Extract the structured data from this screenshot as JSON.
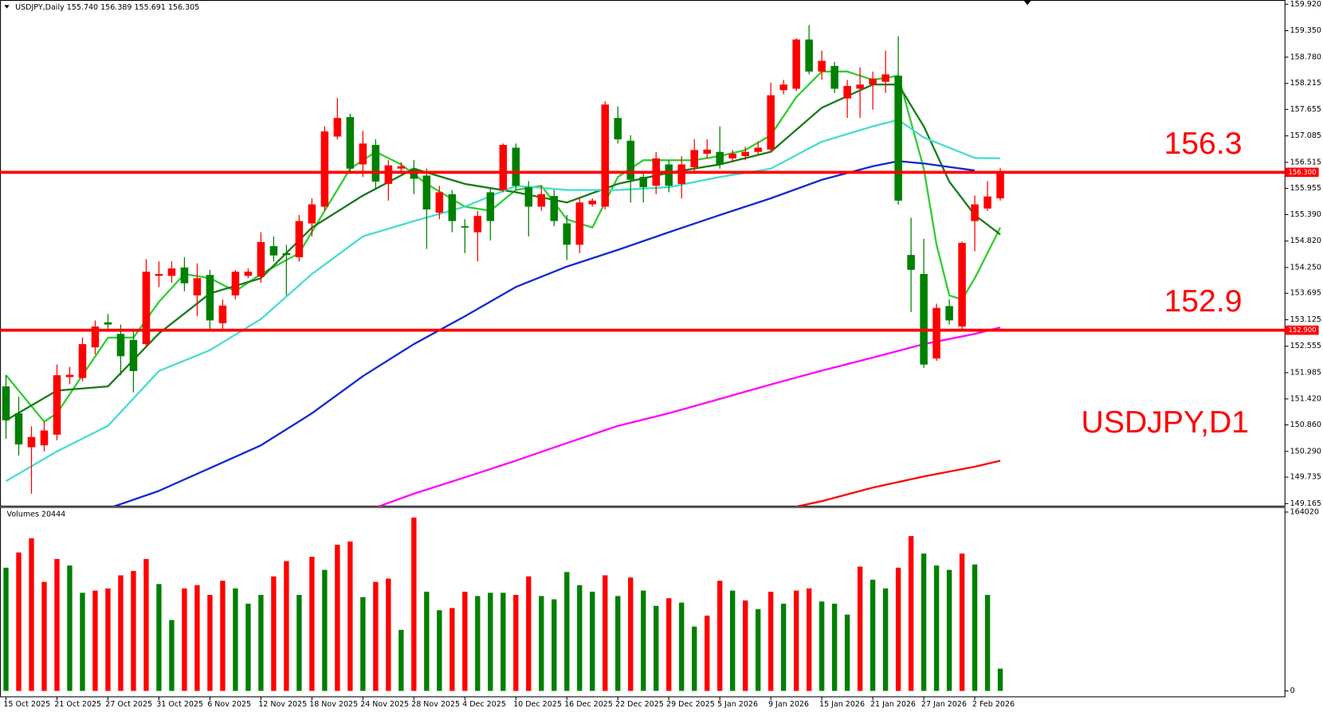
{
  "chart_data": [
    {
      "type": "candlestick",
      "title": "USDJPY,Daily 155.740 156.389 155.691 156.305",
      "annotation": "USDJPY,D1",
      "categories": [
        "15 Oct 2025",
        null,
        null,
        null,
        "21 Oct 2025",
        null,
        null,
        null,
        "27 Oct 2025",
        null,
        null,
        null,
        "31 Oct 2025",
        null,
        null,
        null,
        "6 Nov 2025",
        null,
        null,
        null,
        "12 Nov 2025",
        null,
        null,
        null,
        "18 Nov 2025",
        null,
        null,
        null,
        "24 Nov 2025",
        null,
        null,
        null,
        "28 Nov 2025",
        null,
        null,
        null,
        "4 Dec 2025",
        null,
        null,
        null,
        "10 Dec 2025",
        null,
        null,
        null,
        "16 Dec 2025",
        null,
        null,
        null,
        "22 Dec 2025",
        null,
        null,
        null,
        "29 Dec 2025",
        null,
        null,
        null,
        "5 Jan 2026",
        null,
        null,
        null,
        "9 Jan 2026",
        null,
        null,
        null,
        "15 Jan 2026",
        null,
        null,
        null,
        "21 Jan 2026",
        null,
        null,
        null,
        "27 Jan 2026",
        null,
        null,
        null,
        "2 Feb 2026",
        null,
        null
      ],
      "open": [
        151.69,
        151.11,
        150.38,
        150.42,
        150.65,
        151.89,
        151.87,
        152.53,
        153.07,
        152.82,
        152.69,
        152.6,
        154.07,
        154.07,
        154.25,
        153.65,
        154.09,
        153.05,
        153.65,
        154.07,
        154.05,
        154.71,
        154.56,
        154.47,
        155.2,
        155.56,
        157.07,
        157.49,
        156.47,
        156.89,
        156.05,
        156.38,
        156.38,
        156.23,
        155.43,
        155.83,
        155.14,
        155.01,
        155.87,
        155.92,
        156.83,
        155.98,
        155.56,
        155.79,
        155.2,
        154.74,
        155.61,
        155.56,
        157.47,
        156.98,
        156.2,
        156.01,
        156.47,
        156.05,
        156.41,
        156.7,
        156.74,
        156.6,
        156.65,
        156.74,
        156.79,
        158.07,
        158.1,
        159.16,
        158.47,
        158.59,
        157.89,
        158.1,
        158.19,
        158.25,
        158.38,
        154.52,
        154.11,
        152.29,
        153.42,
        152.98,
        155.25,
        155.52,
        155.74
      ],
      "high": [
        151.93,
        151.47,
        150.83,
        150.93,
        152.16,
        152.11,
        152.74,
        153.11,
        153.25,
        153.02,
        152.93,
        154.43,
        154.38,
        154.38,
        154.47,
        154.34,
        154.2,
        153.56,
        154.2,
        154.23,
        155.01,
        154.92,
        154.74,
        155.38,
        155.74,
        157.29,
        157.9,
        157.56,
        157.19,
        157.01,
        156.56,
        156.52,
        156.56,
        156.38,
        156.01,
        155.92,
        155.29,
        155.47,
        155.98,
        156.92,
        156.92,
        156.11,
        156.01,
        155.92,
        155.38,
        155.74,
        155.74,
        157.83,
        157.72,
        157.1,
        156.29,
        156.74,
        156.56,
        156.65,
        157.01,
        157.01,
        157.29,
        156.78,
        156.85,
        156.96,
        158.23,
        158.29,
        159.19,
        159.47,
        158.92,
        158.68,
        158.29,
        158.56,
        158.47,
        158.92,
        159.23,
        155.32,
        154.87,
        153.47,
        153.56,
        154.81,
        155.8,
        156.11,
        156.389
      ],
      "low": [
        150.56,
        150.2,
        149.38,
        150.29,
        150.53,
        151.74,
        151.8,
        152.38,
        152.92,
        151.93,
        151.56,
        152.53,
        153.83,
        153.92,
        153.74,
        153.2,
        152.92,
        152.92,
        153.56,
        154.02,
        153.92,
        154.38,
        153.65,
        154.38,
        154.92,
        155.47,
        157.01,
        156.29,
        156.2,
        155.92,
        155.69,
        156.29,
        155.83,
        154.65,
        155.29,
        155.01,
        154.56,
        154.38,
        154.83,
        155.87,
        155.92,
        154.92,
        155.47,
        155.14,
        154.41,
        154.56,
        155.56,
        155.5,
        156.92,
        155.65,
        155.65,
        155.83,
        155.87,
        155.74,
        156.29,
        156.6,
        156.38,
        156.52,
        156.56,
        156.69,
        156.74,
        157.98,
        158.05,
        158.41,
        158.29,
        158.01,
        157.47,
        157.47,
        157.65,
        158.01,
        155.6,
        153.29,
        152.09,
        152.24,
        153.02,
        152.89,
        154.6,
        155.47,
        155.691
      ],
      "close": [
        150.96,
        150.44,
        150.6,
        150.74,
        151.93,
        151.94,
        152.6,
        152.98,
        153.02,
        152.34,
        152.02,
        154.16,
        154.11,
        154.23,
        153.91,
        154.02,
        153.11,
        153.43,
        154.16,
        154.16,
        154.8,
        154.51,
        154.52,
        155.25,
        155.61,
        157.18,
        157.47,
        156.38,
        156.92,
        156.1,
        156.45,
        156.43,
        156.16,
        155.5,
        155.87,
        155.25,
        155.11,
        155.36,
        155.25,
        156.89,
        156.01,
        155.56,
        155.83,
        155.25,
        154.74,
        155.65,
        155.69,
        157.76,
        157.01,
        156.14,
        155.98,
        156.6,
        156.01,
        156.47,
        156.78,
        156.79,
        156.47,
        156.7,
        156.74,
        156.83,
        157.96,
        158.19,
        159.16,
        158.47,
        158.7,
        158.1,
        158.16,
        158.19,
        158.32,
        158.41,
        155.69,
        154.2,
        152.16,
        153.38,
        153.11,
        154.78,
        155.61,
        155.78,
        156.305
      ],
      "up_color": "#ff0000",
      "down_color": "#008000",
      "series": [
        {
          "color": "#32cd32",
          "x": [
            0,
            3,
            4,
            6,
            8,
            10,
            12,
            14,
            16,
            18,
            20,
            23,
            25,
            27,
            29,
            31,
            33,
            36,
            38,
            40,
            42,
            44,
            46,
            48,
            50,
            52,
            54,
            56,
            58,
            60,
            62,
            64,
            66,
            68,
            70,
            72,
            73,
            74,
            75,
            76,
            77,
            78
          ],
          "values": [
            151.93,
            150.93,
            151.11,
            151.93,
            152.74,
            152.74,
            153.51,
            154.11,
            154.02,
            153.74,
            154.11,
            154.56,
            155.47,
            156.38,
            156.74,
            156.47,
            156.05,
            155.56,
            155.47,
            155.92,
            156.01,
            155.29,
            155.11,
            156.2,
            156.56,
            156.56,
            156.56,
            156.65,
            156.78,
            157.1,
            157.92,
            158.47,
            158.47,
            158.29,
            158.38,
            156.38,
            154.74,
            153.65,
            153.56,
            154.02,
            154.56,
            155.11
          ]
        },
        {
          "color": "#1b7a1b",
          "x": [
            0,
            4,
            8,
            12,
            16,
            20,
            24,
            28,
            32,
            36,
            40,
            44,
            48,
            52,
            56,
            60,
            64,
            68,
            70,
            72,
            74,
            76,
            78
          ],
          "values": [
            150.96,
            151.6,
            151.69,
            152.83,
            153.69,
            154.02,
            155.11,
            155.8,
            156.38,
            156.05,
            155.87,
            155.65,
            156.05,
            156.29,
            156.47,
            156.74,
            157.69,
            158.19,
            158.19,
            157.29,
            156.1,
            155.38,
            154.96
          ]
        },
        {
          "color": "#48dcd0",
          "x": [
            0,
            4,
            8,
            12,
            16,
            20,
            24,
            28,
            32,
            36,
            40,
            44,
            48,
            52,
            56,
            60,
            64,
            68,
            70,
            72,
            76,
            78
          ],
          "values": [
            149.65,
            150.29,
            150.84,
            152.02,
            152.47,
            153.14,
            154.11,
            154.92,
            155.25,
            155.56,
            156.01,
            155.92,
            155.92,
            155.98,
            156.2,
            156.38,
            156.96,
            157.29,
            157.43,
            157.05,
            156.61,
            156.6
          ]
        },
        {
          "color": "#1428d2",
          "x": [
            8,
            12,
            16,
            20,
            24,
            28,
            32,
            36,
            40,
            44,
            48,
            52,
            56,
            60,
            64,
            68,
            70,
            72,
            76
          ],
          "values": [
            149.06,
            149.44,
            149.93,
            150.42,
            151.11,
            151.91,
            152.6,
            153.2,
            153.83,
            154.27,
            154.63,
            155.01,
            155.38,
            155.74,
            156.14,
            156.43,
            156.54,
            156.49,
            156.34
          ]
        },
        {
          "color": "#ff00ff",
          "x": [
            28,
            32,
            36,
            40,
            44,
            48,
            52,
            56,
            60,
            64,
            68,
            72,
            76,
            78
          ],
          "values": [
            148.98,
            149.38,
            149.73,
            150.09,
            150.47,
            150.84,
            151.11,
            151.42,
            151.73,
            152.03,
            152.31,
            152.6,
            152.82,
            152.96
          ]
        },
        {
          "color": "#ff0000",
          "x": [
            60,
            64,
            68,
            72,
            76,
            78
          ],
          "values": [
            148.98,
            149.22,
            149.51,
            149.75,
            149.96,
            150.09
          ]
        }
      ],
      "levels": [
        156.3,
        152.9
      ],
      "level_tags": [
        "156.300",
        "152.900"
      ],
      "level_color": "#ff0000",
      "ylim": [
        149.165,
        159.92
      ],
      "yticks": [
        {
          "value": 159.92,
          "label": "159.920"
        },
        {
          "value": 159.35,
          "label": "159.350"
        },
        {
          "value": 158.78,
          "label": "158.780"
        },
        158.215,
        157.655,
        157.085,
        156.515,
        155.955,
        {
          "value": 155.39,
          "label": "155.390"
        },
        {
          "value": 154.82,
          "label": "154.820"
        },
        {
          "value": 154.25,
          "label": "154.250"
        },
        153.695,
        153.125,
        152.555,
        151.985,
        {
          "value": 151.42,
          "label": "151.420"
        },
        {
          "value": 150.86,
          "label": "150.860"
        },
        {
          "value": 150.29,
          "label": "150.290"
        },
        149.735,
        149.165
      ]
    },
    {
      "type": "bar",
      "title": "Volumes 20444",
      "values": [
        113000,
        127000,
        140000,
        100000,
        121000,
        115000,
        90000,
        92000,
        94000,
        106000,
        110000,
        121000,
        98000,
        65000,
        94000,
        97000,
        88000,
        101000,
        94000,
        80000,
        88000,
        105000,
        119000,
        88000,
        123000,
        111000,
        134000,
        137000,
        86000,
        100000,
        103000,
        56000,
        159000,
        91000,
        74000,
        76000,
        91000,
        87000,
        90000,
        90000,
        88000,
        105000,
        87000,
        84000,
        109000,
        97000,
        91000,
        106000,
        87000,
        104000,
        92000,
        78000,
        85000,
        81000,
        59000,
        69000,
        101000,
        92000,
        83000,
        75000,
        91000,
        80000,
        92000,
        94000,
        82000,
        80000,
        70000,
        114000,
        102000,
        94000,
        113000,
        142000,
        126000,
        115000,
        111000,
        126000,
        116000,
        88000,
        20444
      ],
      "colors": [
        "#008000",
        "#ff0000",
        "#ff0000",
        "#ff0000",
        "#ff0000",
        "#008000",
        "#008000",
        "#ff0000",
        "#ff0000",
        "#ff0000",
        "#ff0000",
        "#ff0000",
        "#008000",
        "#008000",
        "#ff0000",
        "#ff0000",
        "#ff0000",
        "#ff0000",
        "#008000",
        "#008000",
        "#008000",
        "#ff0000",
        "#ff0000",
        "#008000",
        "#ff0000",
        "#008000",
        "#ff0000",
        "#ff0000",
        "#008000",
        "#ff0000",
        "#ff0000",
        "#008000",
        "#ff0000",
        "#008000",
        "#008000",
        "#ff0000",
        "#ff0000",
        "#008000",
        "#008000",
        "#008000",
        "#ff0000",
        "#ff0000",
        "#008000",
        "#008000",
        "#008000",
        "#008000",
        "#008000",
        "#ff0000",
        "#008000",
        "#ff0000",
        "#008000",
        "#008000",
        "#ff0000",
        "#008000",
        "#008000",
        "#ff0000",
        "#ff0000",
        "#008000",
        "#ff0000",
        "#008000",
        "#ff0000",
        "#008000",
        "#ff0000",
        "#ff0000",
        "#008000",
        "#008000",
        "#008000",
        "#ff0000",
        "#008000",
        "#008000",
        "#ff0000",
        "#ff0000",
        "#008000",
        "#008000",
        "#008000",
        "#ff0000",
        "#008000",
        "#008000",
        "#008000"
      ],
      "ylim": [
        0,
        164020
      ],
      "yticks": [
        164020,
        0
      ]
    }
  ]
}
